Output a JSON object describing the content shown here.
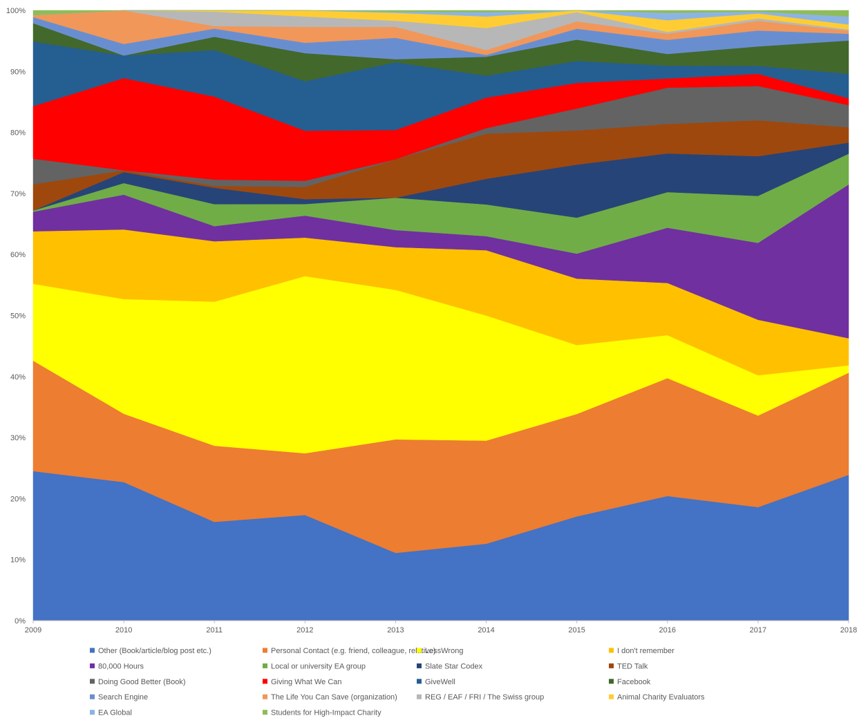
{
  "chart_data": {
    "type": "area",
    "stacked": true,
    "percent": true,
    "title": "",
    "xlabel": "",
    "ylabel": "",
    "ylim": [
      0,
      100
    ],
    "x": [
      "2009",
      "2010",
      "2011",
      "2012",
      "2013",
      "2014",
      "2015",
      "2016",
      "2017",
      "2018"
    ],
    "y_ticks": [
      "0%",
      "10%",
      "20%",
      "30%",
      "40%",
      "50%",
      "60%",
      "70%",
      "80%",
      "90%",
      "100%"
    ],
    "legend_position": "bottom",
    "series": [
      {
        "name": "Other (Book/article/blog post etc.)",
        "color": "#4472C4",
        "values": [
          24.5,
          22.7,
          15.7,
          17.3,
          11.1,
          12.6,
          17.1,
          20.3,
          18.6,
          23.7
        ]
      },
      {
        "name": "Personal Contact (e.g. friend, colleague, relative)",
        "color": "#ED7D31",
        "values": [
          18.1,
          11.2,
          12.1,
          10.1,
          18.6,
          16.9,
          16.8,
          19.2,
          15.0,
          16.6
        ]
      },
      {
        "name": "LessWrong",
        "color": "#FFFF00",
        "values": [
          12.6,
          18.8,
          22.9,
          29.0,
          24.5,
          20.5,
          11.3,
          7.0,
          6.6,
          1.2
        ]
      },
      {
        "name": "I don't remember",
        "color": "#FFC000",
        "values": [
          8.6,
          11.4,
          9.6,
          6.3,
          7.0,
          10.7,
          10.9,
          8.5,
          9.1,
          4.4
        ]
      },
      {
        "name": "80,000 Hours",
        "color": "#7030A0",
        "values": [
          3.2,
          5.7,
          2.4,
          3.6,
          2.8,
          2.3,
          4.1,
          9.0,
          12.6,
          25.0
        ]
      },
      {
        "name": "Local or university EA group",
        "color": "#70AD47",
        "values": [
          0.2,
          1.9,
          3.5,
          1.9,
          5.3,
          5.2,
          5.9,
          5.8,
          7.7,
          5.0
        ]
      },
      {
        "name": "Slate Star Codex",
        "color": "#264478",
        "values": [
          0.0,
          1.8,
          2.6,
          0.8,
          0.0,
          4.2,
          8.7,
          6.3,
          6.5,
          1.8
        ]
      },
      {
        "name": "TED Talk",
        "color": "#9E480E",
        "values": [
          4.3,
          0.3,
          0.3,
          2.0,
          6.3,
          7.4,
          5.6,
          4.8,
          5.9,
          2.5
        ]
      },
      {
        "name": "Doing Good Better (Book)",
        "color": "#636363",
        "values": [
          4.2,
          0.0,
          1.0,
          1.0,
          0.0,
          0.9,
          3.6,
          5.9,
          5.6,
          3.6
        ]
      },
      {
        "name": "Giving What We Can",
        "color": "#FF0000",
        "values": [
          8.6,
          15.1,
          13.2,
          8.2,
          4.8,
          5.0,
          4.2,
          1.5,
          2.0,
          1.1
        ]
      },
      {
        "name": "GiveWell",
        "color": "#255E91",
        "values": [
          10.6,
          3.7,
          7.4,
          8.1,
          11.1,
          3.6,
          3.6,
          2.1,
          1.3,
          4.0
        ]
      },
      {
        "name": "Facebook",
        "color": "#43682B",
        "values": [
          3.0,
          0.0,
          2.1,
          4.6,
          0.5,
          3.1,
          3.5,
          1.9,
          3.2,
          5.4
        ]
      },
      {
        "name": "Search Engine",
        "color": "#698ED0",
        "values": [
          1.0,
          1.9,
          1.3,
          1.7,
          3.5,
          0.3,
          1.8,
          2.3,
          2.6,
          1.1
        ]
      },
      {
        "name": "The Life You Can Save (organization)",
        "color": "#F1975A",
        "values": [
          0.3,
          5.5,
          0.4,
          2.6,
          1.8,
          0.8,
          1.2,
          1.0,
          1.6,
          0.5
        ]
      },
      {
        "name": "REG / EAF / FRI / The Swiss group",
        "color": "#B7B7B7",
        "values": [
          0.0,
          0.0,
          2.3,
          1.7,
          1.0,
          3.6,
          1.5,
          0.3,
          0.4,
          0.2
        ]
      },
      {
        "name": "Animal Charity Evaluators",
        "color": "#FFCD33",
        "values": [
          0.0,
          0.0,
          0.2,
          1.0,
          1.3,
          1.9,
          0.3,
          1.9,
          0.8,
          0.8
        ]
      },
      {
        "name": "EA Global",
        "color": "#8CB4E3",
        "values": [
          0.0,
          0.0,
          0.0,
          0.0,
          0.2,
          0.7,
          0.0,
          1.2,
          0.3,
          1.3
        ]
      },
      {
        "name": "Students for High-Impact Charity",
        "color": "#8FBC5A",
        "values": [
          0.8,
          0.0,
          0.0,
          0.0,
          0.2,
          0.3,
          0.0,
          0.4,
          0.2,
          1.0
        ]
      }
    ]
  }
}
